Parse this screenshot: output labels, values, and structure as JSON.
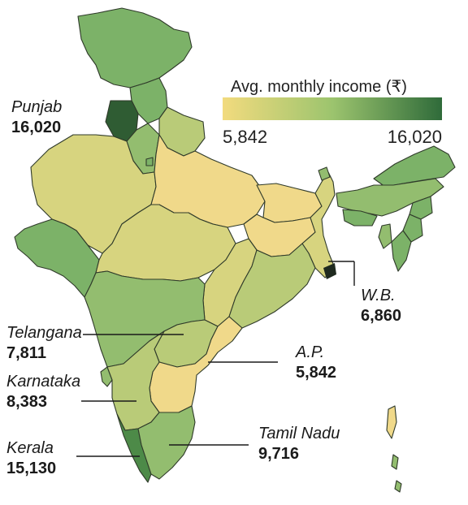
{
  "legend": {
    "title": "Avg. monthly income (₹)",
    "min_label": "5,842",
    "max_label": "16,020",
    "min": 5842,
    "max": 16020,
    "color_low": "#f2db7e",
    "color_high": "#2f6b3a"
  },
  "colors": {
    "pale_yellow": "#f0d98a",
    "yellow_green": "#d7d47f",
    "light_green": "#b9cb78",
    "mid_green": "#93bd6f",
    "green": "#7cb268",
    "dark_green": "#4d8a48",
    "darkest": "#2f5c33"
  },
  "labels": [
    {
      "name": "Punjab",
      "value": "16,020"
    },
    {
      "name": "W.B.",
      "value": "6,860"
    },
    {
      "name": "Telangana",
      "value": "7,811"
    },
    {
      "name": "A.P.",
      "value": "5,842"
    },
    {
      "name": "Karnataka",
      "value": "8,383"
    },
    {
      "name": "Tamil Nadu",
      "value": "9,716"
    },
    {
      "name": "Kerala",
      "value": "15,130"
    }
  ],
  "chart_data": {
    "type": "choropleth",
    "values": [
      {
        "state": "Punjab",
        "income": 16020
      },
      {
        "state": "W.B.",
        "income": 6860
      },
      {
        "state": "Telangana",
        "income": 7811
      },
      {
        "state": "A.P.",
        "income": 5842
      },
      {
        "state": "Karnataka",
        "income": 8383
      },
      {
        "state": "Tamil Nadu",
        "income": 9716
      },
      {
        "state": "Kerala",
        "income": 15130
      }
    ],
    "scale_min": 5842,
    "scale_max": 16020
  }
}
